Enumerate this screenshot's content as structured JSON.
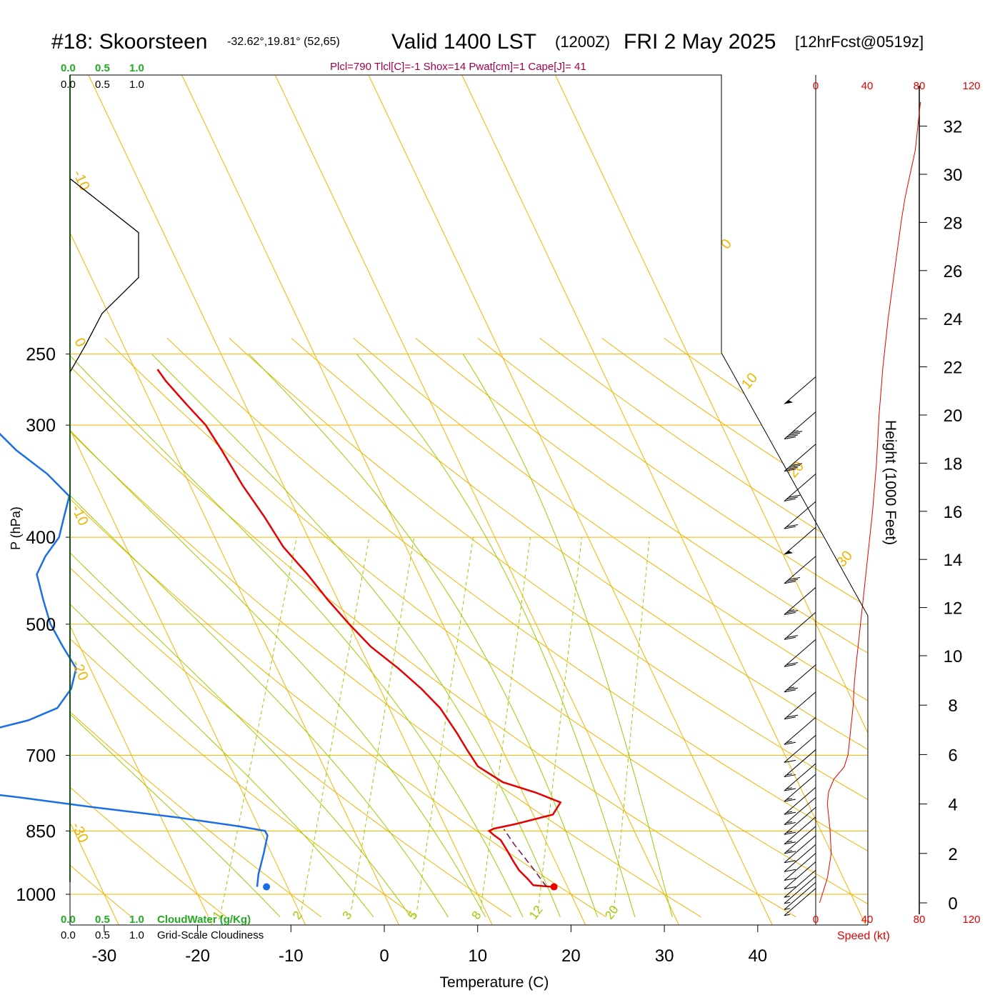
{
  "header": {
    "station": "#18: Skoorsteen",
    "coords": "-32.62°,19.81° (52,65)",
    "valid": "Valid 1400 LST",
    "utc": "(1200Z)",
    "date": "FRI 2 May 2025",
    "fcst": "[12hrFcst@0519z]"
  },
  "indices": "Plcl=790 Tlcl[C]=-1 Shox=14 Pwat[cm]=1 Cape[J]= 41",
  "colors": {
    "temperature": "#e60000",
    "dewpoint": "#1a6ee6",
    "isotherm": "#f0b400",
    "dry_adiabat": "#f0b400",
    "moist_adiabat": "#99cc00",
    "mixing_ratio": "#99cc00",
    "cloud_water": "#22aa22",
    "indices": "#a0004a",
    "speed": "#e60000",
    "parcel": "#7a0a5a"
  },
  "labels": {
    "cloudwater_ticks": [
      "0.0",
      "0.5",
      "1.0"
    ],
    "cloudiness_ticks": [
      "0.0",
      "0.5",
      "1.0"
    ],
    "cloudwater_title": "CloudWater (g/Kg)",
    "cloudiness_title": "Grid-Scale Cloudiness",
    "speed_ticks": [
      "0",
      "40",
      "80",
      "120"
    ],
    "speed_title": "Speed (kt)",
    "height_title": "Height (1000 Feet)",
    "pressure_title": "P (hPa)",
    "temperature_title": "Temperature (C)"
  },
  "chart_data": {
    "type": "line",
    "title": "Skew-T log-P sounding",
    "xlabel": "Temperature (C)",
    "ylabel": "P (hPa)",
    "pressure_ticks": [
      250,
      300,
      400,
      500,
      700,
      850,
      1000
    ],
    "temperature_ticks": [
      -30,
      -20,
      -10,
      0,
      10,
      20,
      30,
      40
    ],
    "height_ticks": [
      0,
      2,
      4,
      6,
      8,
      10,
      12,
      14,
      16,
      18,
      20,
      22,
      24,
      26,
      28,
      30,
      32
    ],
    "dry_adiabat_labels": [
      "-10",
      "0",
      "10",
      "20",
      "30",
      "0",
      "-10",
      "-20",
      "-30"
    ],
    "mixing_ratio_labels": [
      "1",
      "2",
      "3",
      "5",
      "8",
      "12",
      "20"
    ],
    "temperature_profile": {
      "pressure": [
        981,
        977,
        960,
        940,
        920,
        895,
        870,
        860,
        850,
        845,
        835,
        815,
        790,
        770,
        750,
        720,
        690,
        660,
        620,
        590,
        560,
        530,
        500,
        470,
        440,
        410,
        380,
        350,
        320,
        300,
        285,
        268,
        260
      ],
      "temp": [
        17.5,
        15.5,
        14.5,
        13.2,
        12.2,
        11.0,
        9.7,
        8.8,
        8.0,
        8.4,
        10.5,
        14.0,
        14.2,
        11.0,
        7.0,
        3.5,
        1.5,
        -0.5,
        -3.5,
        -6.5,
        -10.0,
        -14.0,
        -17.5,
        -21.0,
        -24.5,
        -28.5,
        -32.0,
        -36.0,
        -40.0,
        -43.0,
        -46.0,
        -49.5,
        -51.0
      ]
    },
    "dewpoint_profile": {
      "pressure": [
        981,
        950,
        900,
        860,
        850,
        840,
        820,
        800,
        780,
        760,
        740,
        720,
        700,
        680,
        660,
        640,
        620,
        590,
        560,
        530,
        500,
        470,
        440,
        420,
        400,
        380,
        360,
        340,
        320,
        300,
        280,
        265
      ],
      "dewp": [
        -14.0,
        -14.5,
        -15.0,
        -15.5,
        -16.0,
        -19.0,
        -26.5,
        -35.5,
        -44.0,
        -53.5,
        -61.0,
        -67.0,
        -64.5,
        -58.5,
        -51.5,
        -47.0,
        -44.5,
        -44.0,
        -44.5,
        -47.0,
        -49.5,
        -51.5,
        -53.5,
        -53.5,
        -53.0,
        -53.5,
        -54.0,
        -57.5,
        -62.0,
        -66.0,
        -70.0,
        -73.0
      ]
    },
    "surface_temp_point": {
      "pressure": 981,
      "value": 17.8
    },
    "surface_dew_point": {
      "pressure": 981,
      "value": -13.0
    },
    "parcel_path": {
      "pressure": [
        981,
        930,
        880,
        846
      ],
      "temp": [
        17.0,
        14.3,
        11.4,
        9.5
      ]
    },
    "cloud_fraction_profile": {
      "height_kft": [
        30.0,
        28.8,
        27.8,
        27.4,
        27.0,
        26.3,
        25.7
      ],
      "value": [
        0.0,
        0.75,
        0.75,
        0.55,
        0.35,
        0.17,
        0.0
      ]
    },
    "wind_speed_profile": {
      "height_kft": [
        0,
        0.5,
        1,
        2,
        3,
        4,
        4.5,
        5,
        5.5,
        6,
        7,
        8,
        9,
        10,
        12,
        14,
        16,
        18,
        20,
        22,
        24,
        26,
        28,
        29,
        30,
        31,
        32,
        33
      ],
      "speed_kt": [
        3,
        6,
        9,
        12,
        11,
        9,
        10,
        14,
        22,
        25,
        27,
        29,
        30,
        32,
        36,
        40,
        44,
        47,
        49,
        52,
        56,
        61,
        66,
        69,
        73,
        77,
        79,
        81
      ]
    },
    "wind_barbs": {
      "pressure": [
        265,
        290,
        315,
        340,
        365,
        390,
        420,
        455,
        485,
        520,
        555,
        595,
        635,
        665,
        690,
        715,
        735,
        760,
        780,
        800,
        820,
        840,
        860,
        880,
        900,
        920,
        940,
        955,
        970,
        985
      ],
      "speed_kt": [
        50,
        45,
        40,
        30,
        20,
        50,
        30,
        25,
        20,
        20,
        25,
        20,
        15,
        10,
        15,
        15,
        15,
        15,
        15,
        15,
        15,
        15,
        10,
        10,
        10,
        10,
        5,
        5,
        5,
        5
      ]
    }
  }
}
